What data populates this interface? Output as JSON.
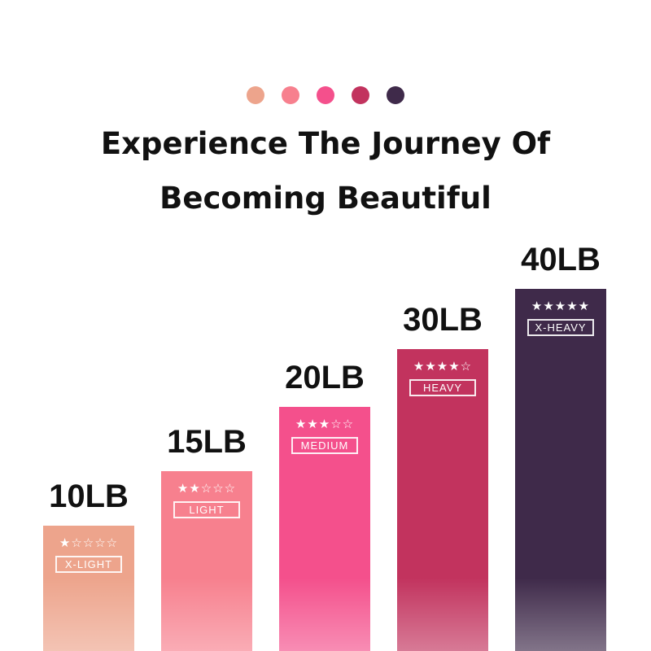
{
  "header": {
    "dot_colors": [
      "#eda48c",
      "#f7808e",
      "#f4508c",
      "#c2335e",
      "#3f2a4a"
    ],
    "title_line1": "Experience The Journey Of",
    "title_line2": "Becoming Beautiful"
  },
  "chart_data": {
    "type": "bar",
    "categories": [
      "X-LIGHT",
      "LIGHT",
      "MEDIUM",
      "HEAVY",
      "X-HEAVY"
    ],
    "values": [
      10,
      15,
      20,
      30,
      40
    ],
    "value_labels": [
      "10LB",
      "15LB",
      "20LB",
      "30LB",
      "40LB"
    ],
    "stars_filled": [
      1,
      2,
      3,
      4,
      5
    ],
    "stars_total": 5,
    "colors": [
      "#eda48c",
      "#f7808e",
      "#f4508c",
      "#c2335e",
      "#3f2a4a"
    ],
    "title": "",
    "xlabel": "",
    "ylabel": "",
    "grid": false
  }
}
